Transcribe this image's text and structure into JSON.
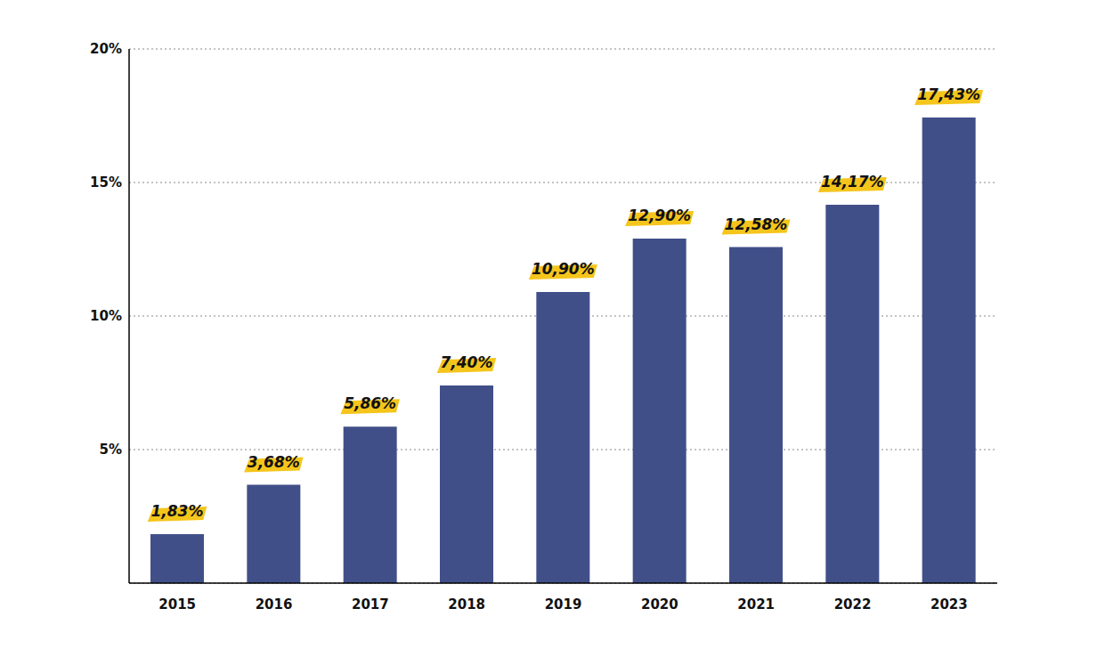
{
  "chart_data": {
    "type": "bar",
    "categories": [
      "2015",
      "2016",
      "2017",
      "2018",
      "2019",
      "2020",
      "2021",
      "2022",
      "2023"
    ],
    "values": [
      1.83,
      3.68,
      5.86,
      7.4,
      10.9,
      12.9,
      12.58,
      14.17,
      17.43
    ],
    "value_labels": [
      "1,83%",
      "3,68%",
      "5,86%",
      "7,40%",
      "10,90%",
      "12,90%",
      "12,58%",
      "14,17%",
      "17,43%"
    ],
    "color": "#414f89",
    "ylim": [
      0,
      20
    ],
    "yticks": [
      {
        "value": 5,
        "label": "5%"
      },
      {
        "value": 10,
        "label": "10%"
      },
      {
        "value": 15,
        "label": "15%"
      },
      {
        "value": 20,
        "label": "20%"
      }
    ],
    "grid": true,
    "data_labels": true
  }
}
